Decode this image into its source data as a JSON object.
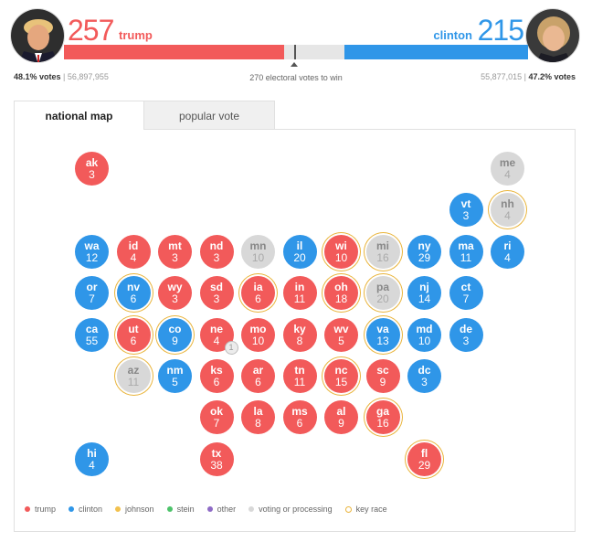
{
  "trump": {
    "name": "trump",
    "electoral_votes": "257",
    "vote_pct": "48.1% votes",
    "vote_count": "56,897,955",
    "bar_share": 0.4737,
    "color": "#f25a5a"
  },
  "clinton": {
    "name": "clinton",
    "electoral_votes": "215",
    "vote_pct": "47.2% votes",
    "vote_count": "55,877,015",
    "bar_share": 0.3959,
    "color": "#2f96e8"
  },
  "win_label": "270 electoral votes to win",
  "tabs": {
    "national": "national map",
    "popular": "popular vote",
    "active": "national map"
  },
  "colors": {
    "undecided": "#d8d8d8",
    "johnson": "#f2c14e",
    "stein": "#4cc36a",
    "other": "#8e6bc6",
    "key_race_ring": "#e9b43b"
  },
  "states": [
    {
      "abbr": "ak",
      "ev": "3",
      "winner": "r",
      "key": false
    },
    {
      "abbr": "me",
      "ev": "4",
      "winner": "u",
      "key": false
    },
    {
      "abbr": "vt",
      "ev": "3",
      "winner": "d",
      "key": false
    },
    {
      "abbr": "nh",
      "ev": "4",
      "winner": "u",
      "key": true
    },
    {
      "abbr": "wa",
      "ev": "12",
      "winner": "d",
      "key": false
    },
    {
      "abbr": "id",
      "ev": "4",
      "winner": "r",
      "key": false
    },
    {
      "abbr": "mt",
      "ev": "3",
      "winner": "r",
      "key": false
    },
    {
      "abbr": "nd",
      "ev": "3",
      "winner": "r",
      "key": false
    },
    {
      "abbr": "mn",
      "ev": "10",
      "winner": "u",
      "key": false
    },
    {
      "abbr": "il",
      "ev": "20",
      "winner": "d",
      "key": false
    },
    {
      "abbr": "wi",
      "ev": "10",
      "winner": "r",
      "key": true
    },
    {
      "abbr": "mi",
      "ev": "16",
      "winner": "u",
      "key": true
    },
    {
      "abbr": "ny",
      "ev": "29",
      "winner": "d",
      "key": false
    },
    {
      "abbr": "ma",
      "ev": "11",
      "winner": "d",
      "key": false
    },
    {
      "abbr": "ri",
      "ev": "4",
      "winner": "d",
      "key": false
    },
    {
      "abbr": "or",
      "ev": "7",
      "winner": "d",
      "key": false
    },
    {
      "abbr": "nv",
      "ev": "6",
      "winner": "d",
      "key": true
    },
    {
      "abbr": "wy",
      "ev": "3",
      "winner": "r",
      "key": false
    },
    {
      "abbr": "sd",
      "ev": "3",
      "winner": "r",
      "key": false
    },
    {
      "abbr": "ia",
      "ev": "6",
      "winner": "r",
      "key": true
    },
    {
      "abbr": "in",
      "ev": "11",
      "winner": "r",
      "key": false
    },
    {
      "abbr": "oh",
      "ev": "18",
      "winner": "r",
      "key": true
    },
    {
      "abbr": "pa",
      "ev": "20",
      "winner": "u",
      "key": true
    },
    {
      "abbr": "nj",
      "ev": "14",
      "winner": "d",
      "key": false
    },
    {
      "abbr": "ct",
      "ev": "7",
      "winner": "d",
      "key": false
    },
    {
      "abbr": "ca",
      "ev": "55",
      "winner": "d",
      "key": false
    },
    {
      "abbr": "ut",
      "ev": "6",
      "winner": "r",
      "key": true
    },
    {
      "abbr": "co",
      "ev": "9",
      "winner": "d",
      "key": true
    },
    {
      "abbr": "ne",
      "ev": "4",
      "winner": "r",
      "key": false
    },
    {
      "abbr": "mo",
      "ev": "10",
      "winner": "r",
      "key": false
    },
    {
      "abbr": "ky",
      "ev": "8",
      "winner": "r",
      "key": false
    },
    {
      "abbr": "wv",
      "ev": "5",
      "winner": "r",
      "key": false
    },
    {
      "abbr": "va",
      "ev": "13",
      "winner": "d",
      "key": true
    },
    {
      "abbr": "md",
      "ev": "10",
      "winner": "d",
      "key": false
    },
    {
      "abbr": "de",
      "ev": "3",
      "winner": "d",
      "key": false
    },
    {
      "abbr": "az",
      "ev": "11",
      "winner": "u",
      "key": true
    },
    {
      "abbr": "nm",
      "ev": "5",
      "winner": "d",
      "key": false
    },
    {
      "abbr": "ks",
      "ev": "6",
      "winner": "r",
      "key": false
    },
    {
      "abbr": "ar",
      "ev": "6",
      "winner": "r",
      "key": false
    },
    {
      "abbr": "tn",
      "ev": "11",
      "winner": "r",
      "key": false
    },
    {
      "abbr": "nc",
      "ev": "15",
      "winner": "r",
      "key": true
    },
    {
      "abbr": "sc",
      "ev": "9",
      "winner": "r",
      "key": false
    },
    {
      "abbr": "dc",
      "ev": "3",
      "winner": "d",
      "key": false
    },
    {
      "abbr": "ok",
      "ev": "7",
      "winner": "r",
      "key": false
    },
    {
      "abbr": "la",
      "ev": "8",
      "winner": "r",
      "key": false
    },
    {
      "abbr": "ms",
      "ev": "6",
      "winner": "r",
      "key": false
    },
    {
      "abbr": "al",
      "ev": "9",
      "winner": "r",
      "key": false
    },
    {
      "abbr": "ga",
      "ev": "16",
      "winner": "r",
      "key": true
    },
    {
      "abbr": "hi",
      "ev": "4",
      "winner": "d",
      "key": false
    },
    {
      "abbr": "tx",
      "ev": "38",
      "winner": "r",
      "key": false
    },
    {
      "abbr": "fl",
      "ev": "29",
      "winner": "r",
      "key": true
    }
  ],
  "nebraska_split_badge": "1",
  "legend": [
    {
      "label": "trump",
      "color": "#f25a5a"
    },
    {
      "label": "clinton",
      "color": "#2f96e8"
    },
    {
      "label": "johnson",
      "color": "#f2c14e"
    },
    {
      "label": "stein",
      "color": "#4cc36a"
    },
    {
      "label": "other",
      "color": "#8e6bc6"
    },
    {
      "label": "voting or processing",
      "color": "#d8d8d8"
    },
    {
      "label": "key race",
      "color": "#e9b43b"
    }
  ]
}
